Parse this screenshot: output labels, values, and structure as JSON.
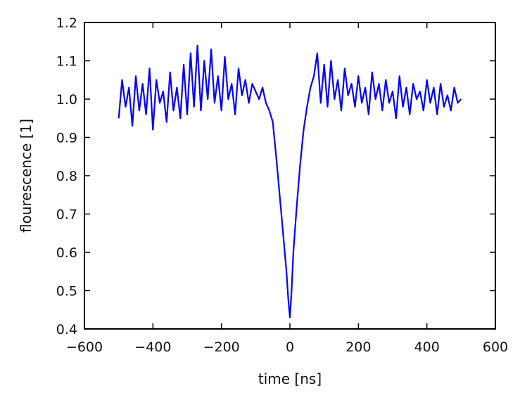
{
  "chart_data": {
    "type": "line",
    "title": "",
    "xlabel": "time [ns]",
    "ylabel": "flourescence [1]",
    "xlim": [
      -600,
      600
    ],
    "ylim": [
      0.4,
      1.2
    ],
    "xticks": [
      -600,
      -400,
      -200,
      0,
      200,
      400,
      600
    ],
    "xtick_labels": [
      "−600",
      "−400",
      "−200",
      "0",
      "200",
      "400",
      "600"
    ],
    "yticks": [
      0.4,
      0.5,
      0.6,
      0.7,
      0.8,
      0.9,
      1.0,
      1.1,
      1.2
    ],
    "ytick_labels": [
      "0.4",
      "0.5",
      "0.6",
      "0.7",
      "0.8",
      "0.9",
      "1.0",
      "1.1",
      "1.2"
    ],
    "grid": false,
    "legend": "none",
    "series_color": "#0000ff",
    "series": [
      {
        "name": "",
        "x": [
          -500,
          -490,
          -480,
          -470,
          -460,
          -450,
          -440,
          -430,
          -420,
          -410,
          -400,
          -390,
          -380,
          -370,
          -360,
          -350,
          -340,
          -330,
          -320,
          -310,
          -300,
          -290,
          -280,
          -270,
          -260,
          -250,
          -240,
          -230,
          -220,
          -210,
          -200,
          -190,
          -180,
          -170,
          -160,
          -150,
          -140,
          -130,
          -120,
          -110,
          -100,
          -90,
          -80,
          -70,
          -60,
          -50,
          -40,
          -30,
          -20,
          -10,
          -5,
          0,
          5,
          10,
          20,
          30,
          40,
          50,
          60,
          70,
          80,
          90,
          100,
          110,
          120,
          130,
          140,
          150,
          160,
          170,
          180,
          190,
          200,
          210,
          220,
          230,
          240,
          250,
          260,
          270,
          280,
          290,
          300,
          310,
          320,
          330,
          340,
          350,
          360,
          370,
          380,
          390,
          400,
          410,
          420,
          430,
          440,
          450,
          460,
          470,
          480,
          490,
          500
        ],
        "y": [
          0.95,
          1.05,
          0.98,
          1.03,
          0.93,
          1.06,
          0.97,
          1.04,
          0.96,
          1.08,
          0.92,
          1.05,
          0.99,
          1.02,
          0.94,
          1.07,
          0.97,
          1.03,
          0.95,
          1.09,
          0.96,
          1.12,
          0.98,
          1.14,
          0.97,
          1.1,
          1.0,
          1.13,
          0.99,
          1.06,
          0.97,
          1.11,
          1.0,
          1.04,
          0.96,
          1.08,
          1.01,
          1.05,
          0.99,
          1.04,
          1.02,
          1.0,
          1.03,
          0.99,
          0.97,
          0.94,
          0.85,
          0.75,
          0.65,
          0.55,
          0.48,
          0.43,
          0.5,
          0.6,
          0.72,
          0.83,
          0.92,
          0.98,
          1.03,
          1.06,
          1.12,
          0.99,
          1.09,
          0.98,
          1.1,
          1.0,
          1.05,
          0.97,
          1.08,
          1.01,
          1.04,
          0.98,
          1.06,
          0.99,
          1.03,
          0.96,
          1.07,
          1.0,
          1.04,
          0.97,
          1.05,
          0.99,
          1.02,
          0.95,
          1.06,
          0.98,
          1.03,
          0.96,
          1.04,
          1.0,
          1.02,
          0.97,
          1.05,
          0.99,
          1.03,
          0.96,
          1.04,
          0.98,
          1.01,
          0.97,
          1.03,
          0.99,
          1.0
        ]
      }
    ]
  }
}
